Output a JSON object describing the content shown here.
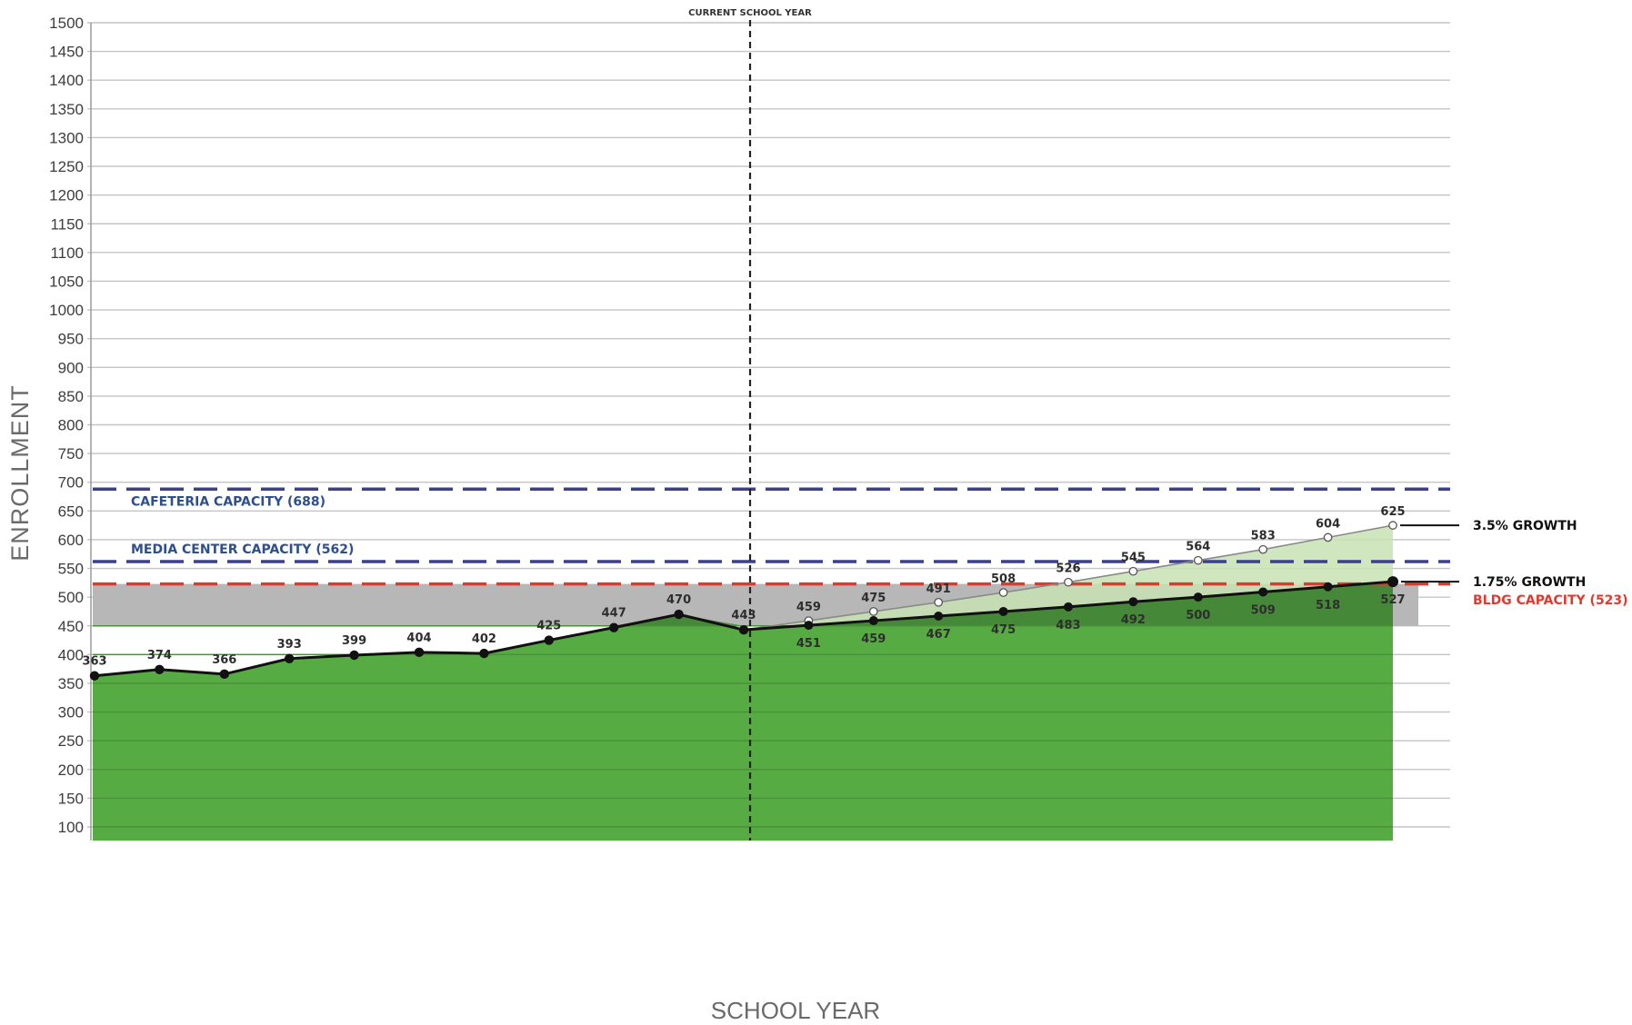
{
  "chart_data": {
    "type": "line",
    "title": "",
    "xlabel": "SCHOOL YEAR",
    "ylabel": "ENROLLMENT",
    "ylim": [
      100,
      1500
    ],
    "yticks": [
      100,
      150,
      200,
      250,
      300,
      350,
      400,
      450,
      500,
      550,
      600,
      650,
      700,
      750,
      800,
      850,
      900,
      950,
      1000,
      1050,
      1100,
      1150,
      1200,
      1250,
      1300,
      1350,
      1400,
      1450,
      1500
    ],
    "grid": true,
    "current_year_label": "CURRENT SCHOOL YEAR",
    "current_year_index": 10,
    "historical": {
      "values": [
        363,
        374,
        366,
        393,
        399,
        404,
        402,
        425,
        447,
        470,
        443
      ]
    },
    "series": [
      {
        "name": "3.5% GROWTH",
        "start_index": 10,
        "values": [
          443,
          459,
          475,
          491,
          508,
          526,
          545,
          564,
          583,
          604,
          625
        ]
      },
      {
        "name": "1.75% GROWTH",
        "start_index": 10,
        "values": [
          443,
          451,
          459,
          467,
          475,
          483,
          492,
          500,
          509,
          518,
          527
        ]
      }
    ],
    "reference_lines": [
      {
        "label": "CAFETERIA CAPACITY (688)",
        "value": 688,
        "color": "#3b3f8f"
      },
      {
        "label": "MEDIA CENTER CAPACITY (562)",
        "value": 562,
        "color": "#3b3f8f"
      },
      {
        "label": "BLDG CAPACITY (523)",
        "value": 523,
        "color": "#e03a2e"
      }
    ],
    "capacity_band": [
      450,
      523
    ],
    "colors": {
      "area": "#57ab43",
      "area_dark": "#3f7d34",
      "growth_area": "#c8e2b4",
      "band": "#b7b7b7",
      "line": "#111111",
      "growth_line": "#8a8a8a",
      "capacity_blue": "#3b3f8f",
      "capacity_label_blue": "#2d4f8c",
      "capacity_red": "#e03a2e"
    }
  }
}
